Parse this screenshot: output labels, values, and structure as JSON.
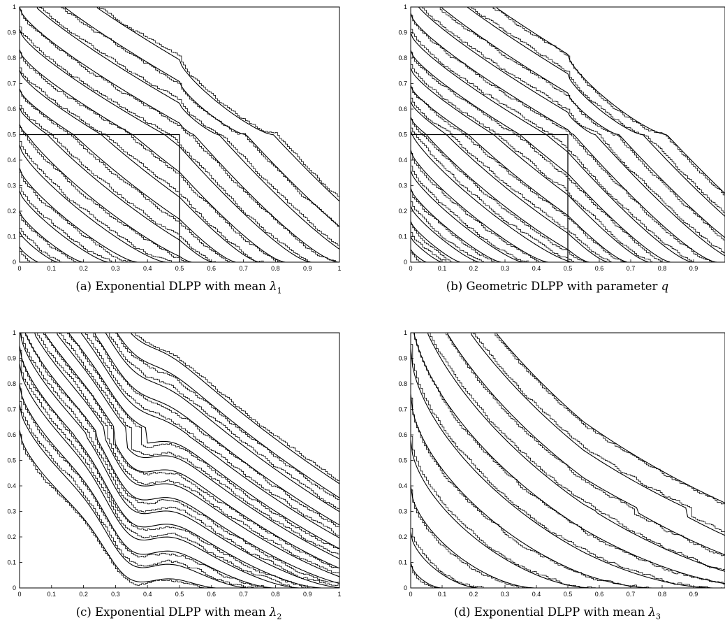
{
  "chart_data": [
    {
      "id": "a",
      "type": "line",
      "caption": {
        "prefix": "(a) Exponential DLPP with mean ",
        "symbol": "λ",
        "subscript": "1"
      },
      "xlim": [
        0,
        1
      ],
      "ylim": [
        0,
        1
      ],
      "xticks": [
        "0",
        "0.1",
        "0.2",
        "0.3",
        "0.4",
        "0.5",
        "0.6",
        "0.7",
        "0.8",
        "0.9",
        "1"
      ],
      "yticks": [
        "0",
        "0.1",
        "0.2",
        "0.3",
        "0.4",
        "0.5",
        "0.6",
        "0.7",
        "0.8",
        "0.9",
        "1"
      ],
      "levels": [
        0.06,
        0.12,
        0.2,
        0.28,
        0.37,
        0.46,
        0.56,
        0.66,
        0.77,
        0.88,
        1.0,
        1.12,
        1.25,
        1.38,
        1.52,
        1.66
      ],
      "corner": {
        "x": 0.5,
        "y": 0.5
      }
    },
    {
      "id": "b",
      "type": "line",
      "caption": {
        "prefix": "(b) Geometric DLPP with parameter ",
        "symbol": "q",
        "subscript": ""
      },
      "xlim": [
        0,
        1
      ],
      "ylim": [
        0,
        1
      ],
      "xticks": [
        "0",
        "0.1",
        "0.2",
        "0.3",
        "0.4",
        "0.5",
        "0.6",
        "0.7",
        "0.8",
        "0.9"
      ],
      "yticks": [
        "0",
        "0.1",
        "0.2",
        "0.3",
        "0.4",
        "0.5",
        "0.6",
        "0.7",
        "0.8",
        "0.9",
        "1"
      ],
      "levels": [
        0.05,
        0.1,
        0.16,
        0.22,
        0.29,
        0.36,
        0.44,
        0.52,
        0.6,
        0.69,
        0.78,
        0.88,
        0.98,
        1.08,
        1.19,
        1.3,
        1.42,
        1.54,
        1.66
      ],
      "corner": {
        "x": 0.5,
        "y": 0.5
      }
    },
    {
      "id": "c",
      "type": "line",
      "caption": {
        "prefix": "(c) Exponential DLPP with mean ",
        "symbol": "λ",
        "subscript": "2"
      },
      "xlim": [
        0,
        1
      ],
      "ylim": [
        0,
        1
      ],
      "xticks": [
        "0",
        "0.1",
        "0.2",
        "0.3",
        "0.4",
        "0.5",
        "0.6",
        "0.7",
        "0.8",
        "0.9",
        "1"
      ],
      "yticks": [
        "0",
        "0.1",
        "0.2",
        "0.3",
        "0.4",
        "0.5",
        "0.6",
        "0.7",
        "0.8",
        "0.9",
        "1"
      ],
      "levels": [
        0.62,
        0.72,
        0.8,
        0.88,
        0.95,
        1.02,
        1.09,
        1.16,
        1.23,
        1.3,
        1.37,
        1.44,
        1.52,
        1.6,
        1.68,
        1.76
      ]
    },
    {
      "id": "d",
      "type": "line",
      "caption": {
        "prefix": "(d) Exponential DLPP with mean ",
        "symbol": "λ",
        "subscript": "3"
      },
      "xlim": [
        0,
        1
      ],
      "ylim": [
        0,
        1
      ],
      "xticks": [
        "0",
        "0.1",
        "0.2",
        "0.3",
        "0.4",
        "0.5",
        "0.6",
        "0.7",
        "0.8",
        "0.9"
      ],
      "yticks": [
        "0",
        "0.1",
        "0.2",
        "0.3",
        "0.4",
        "0.5",
        "0.6",
        "0.7",
        "0.8",
        "0.9",
        "1"
      ],
      "levels": [
        0.1,
        0.22,
        0.4,
        0.58,
        0.76,
        0.94,
        1.1,
        1.26,
        1.42,
        1.58,
        1.74
      ]
    }
  ]
}
